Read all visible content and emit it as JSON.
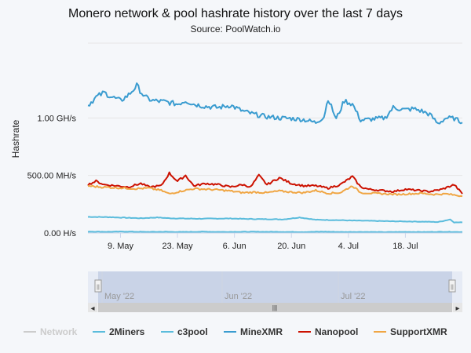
{
  "chart_data": {
    "type": "line",
    "title": "Monero network & pool hashrate history over the last 7 days",
    "subtitle": "Source: PoolWatch.io",
    "ylabel": "Hashrate",
    "xlabel": "",
    "ylim_mhs": [
      0,
      1650
    ],
    "y_ticks": [
      {
        "value": 0,
        "label": "0.00 H/s"
      },
      {
        "value": 500,
        "label": "500.00 MH/s"
      },
      {
        "value": 1000,
        "label": "1.00 GH/s"
      }
    ],
    "x_range": [
      "2022-05-01",
      "2022-08-01"
    ],
    "x_ticks": [
      {
        "date": "2022-05-09",
        "label": "9. May"
      },
      {
        "date": "2022-05-23",
        "label": "23. May"
      },
      {
        "date": "2022-06-06",
        "label": "6. Jun"
      },
      {
        "date": "2022-06-20",
        "label": "20. Jun"
      },
      {
        "date": "2022-07-04",
        "label": "4. Jul"
      },
      {
        "date": "2022-07-18",
        "label": "18. Jul"
      }
    ],
    "grid": true,
    "legend_position": "bottom",
    "series": [
      {
        "name": "Network",
        "color": "#cccccc",
        "visible": false,
        "points": []
      },
      {
        "name": "2Miners",
        "color": "#5bbcdc",
        "visible": true,
        "points": [
          [
            "2022-05-01",
            140
          ],
          [
            "2022-05-06",
            138
          ],
          [
            "2022-05-10",
            133
          ],
          [
            "2022-05-14",
            128
          ],
          [
            "2022-05-18",
            135
          ],
          [
            "2022-05-21",
            128
          ],
          [
            "2022-05-24",
            126
          ],
          [
            "2022-05-28",
            124
          ],
          [
            "2022-06-01",
            125
          ],
          [
            "2022-06-05",
            126
          ],
          [
            "2022-06-09",
            122
          ],
          [
            "2022-06-14",
            120
          ],
          [
            "2022-06-18",
            118
          ],
          [
            "2022-06-22",
            135
          ],
          [
            "2022-06-26",
            115
          ],
          [
            "2022-07-01",
            112
          ],
          [
            "2022-07-05",
            108
          ],
          [
            "2022-07-10",
            105
          ],
          [
            "2022-07-14",
            102
          ],
          [
            "2022-07-19",
            100
          ],
          [
            "2022-07-23",
            98
          ],
          [
            "2022-07-26",
            95
          ],
          [
            "2022-07-29",
            118
          ],
          [
            "2022-07-30",
            92
          ],
          [
            "2022-08-01",
            92
          ]
        ]
      },
      {
        "name": "c3pool",
        "color": "#5bbcdc",
        "visible": true,
        "points": [
          [
            "2022-05-01",
            12
          ],
          [
            "2022-05-06",
            10
          ],
          [
            "2022-05-10",
            12
          ],
          [
            "2022-05-15",
            9
          ],
          [
            "2022-05-20",
            10
          ],
          [
            "2022-05-24",
            8
          ],
          [
            "2022-05-29",
            11
          ],
          [
            "2022-06-03",
            9
          ],
          [
            "2022-06-08",
            10
          ],
          [
            "2022-06-13",
            10
          ],
          [
            "2022-06-18",
            9
          ],
          [
            "2022-06-23",
            8
          ],
          [
            "2022-06-28",
            11
          ],
          [
            "2022-07-03",
            8
          ],
          [
            "2022-07-08",
            9
          ],
          [
            "2022-07-13",
            7
          ],
          [
            "2022-07-18",
            9
          ],
          [
            "2022-07-23",
            8
          ],
          [
            "2022-07-28",
            10
          ],
          [
            "2022-08-01",
            8
          ]
        ]
      },
      {
        "name": "MineXMR",
        "color": "#3a9cd0",
        "visible": true,
        "points": [
          [
            "2022-05-01",
            1110
          ],
          [
            "2022-05-03",
            1180
          ],
          [
            "2022-05-05",
            1220
          ],
          [
            "2022-05-07",
            1180
          ],
          [
            "2022-05-09",
            1150
          ],
          [
            "2022-05-11",
            1200
          ],
          [
            "2022-05-13",
            1280
          ],
          [
            "2022-05-15",
            1180
          ],
          [
            "2022-05-17",
            1150
          ],
          [
            "2022-05-20",
            1140
          ],
          [
            "2022-05-23",
            1120
          ],
          [
            "2022-05-25",
            1150
          ],
          [
            "2022-05-27",
            1120
          ],
          [
            "2022-05-30",
            1100
          ],
          [
            "2022-06-02",
            1090
          ],
          [
            "2022-06-05",
            1110
          ],
          [
            "2022-06-08",
            1060
          ],
          [
            "2022-06-11",
            1030
          ],
          [
            "2022-06-14",
            1010
          ],
          [
            "2022-06-17",
            1000
          ],
          [
            "2022-06-20",
            995
          ],
          [
            "2022-06-23",
            985
          ],
          [
            "2022-06-26",
            960
          ],
          [
            "2022-06-28",
            1010
          ],
          [
            "2022-06-29",
            1170
          ],
          [
            "2022-07-01",
            990
          ],
          [
            "2022-07-03",
            1150
          ],
          [
            "2022-07-05",
            1120
          ],
          [
            "2022-07-07",
            980
          ],
          [
            "2022-07-10",
            990
          ],
          [
            "2022-07-13",
            1000
          ],
          [
            "2022-07-15",
            1090
          ],
          [
            "2022-07-18",
            1070
          ],
          [
            "2022-07-20",
            1080
          ],
          [
            "2022-07-22",
            1060
          ],
          [
            "2022-07-24",
            1030
          ],
          [
            "2022-07-26",
            950
          ],
          [
            "2022-07-28",
            1000
          ],
          [
            "2022-07-30",
            995
          ],
          [
            "2022-08-01",
            960
          ]
        ]
      },
      {
        "name": "Nanopool",
        "color": "#cc1100",
        "visible": true,
        "points": [
          [
            "2022-05-01",
            420
          ],
          [
            "2022-05-03",
            450
          ],
          [
            "2022-05-05",
            420
          ],
          [
            "2022-05-08",
            410
          ],
          [
            "2022-05-11",
            400
          ],
          [
            "2022-05-14",
            430
          ],
          [
            "2022-05-16",
            400
          ],
          [
            "2022-05-19",
            410
          ],
          [
            "2022-05-21",
            520
          ],
          [
            "2022-05-23",
            450
          ],
          [
            "2022-05-25",
            500
          ],
          [
            "2022-05-27",
            410
          ],
          [
            "2022-05-30",
            430
          ],
          [
            "2022-06-02",
            420
          ],
          [
            "2022-06-05",
            400
          ],
          [
            "2022-06-08",
            420
          ],
          [
            "2022-06-10",
            400
          ],
          [
            "2022-06-12",
            500
          ],
          [
            "2022-06-14",
            420
          ],
          [
            "2022-06-17",
            480
          ],
          [
            "2022-06-20",
            430
          ],
          [
            "2022-06-23",
            410
          ],
          [
            "2022-06-26",
            410
          ],
          [
            "2022-06-29",
            390
          ],
          [
            "2022-07-02",
            420
          ],
          [
            "2022-07-05",
            490
          ],
          [
            "2022-07-07",
            400
          ],
          [
            "2022-07-09",
            380
          ],
          [
            "2022-07-12",
            370
          ],
          [
            "2022-07-15",
            360
          ],
          [
            "2022-07-18",
            380
          ],
          [
            "2022-07-21",
            370
          ],
          [
            "2022-07-24",
            360
          ],
          [
            "2022-07-27",
            380
          ],
          [
            "2022-07-30",
            420
          ],
          [
            "2022-08-01",
            340
          ]
        ]
      },
      {
        "name": "SupportXMR",
        "color": "#f0a644",
        "visible": true,
        "points": [
          [
            "2022-05-01",
            410
          ],
          [
            "2022-05-04",
            400
          ],
          [
            "2022-05-07",
            395
          ],
          [
            "2022-05-10",
            390
          ],
          [
            "2022-05-13",
            385
          ],
          [
            "2022-05-16",
            390
          ],
          [
            "2022-05-19",
            370
          ],
          [
            "2022-05-21",
            340
          ],
          [
            "2022-05-24",
            365
          ],
          [
            "2022-05-27",
            385
          ],
          [
            "2022-05-30",
            380
          ],
          [
            "2022-06-02",
            375
          ],
          [
            "2022-06-05",
            365
          ],
          [
            "2022-06-08",
            350
          ],
          [
            "2022-06-11",
            355
          ],
          [
            "2022-06-14",
            350
          ],
          [
            "2022-06-17",
            365
          ],
          [
            "2022-06-20",
            355
          ],
          [
            "2022-06-23",
            350
          ],
          [
            "2022-06-26",
            370
          ],
          [
            "2022-06-29",
            345
          ],
          [
            "2022-07-02",
            350
          ],
          [
            "2022-07-05",
            410
          ],
          [
            "2022-07-07",
            350
          ],
          [
            "2022-07-10",
            345
          ],
          [
            "2022-07-13",
            340
          ],
          [
            "2022-07-16",
            335
          ],
          [
            "2022-07-19",
            340
          ],
          [
            "2022-07-22",
            345
          ],
          [
            "2022-07-25",
            335
          ],
          [
            "2022-07-28",
            340
          ],
          [
            "2022-08-01",
            320
          ]
        ]
      }
    ]
  },
  "navigator": {
    "labels": [
      "May '22",
      "Jun '22",
      "Jul '22"
    ],
    "handle_glyph": "||",
    "left_arrow": "◂",
    "right_arrow": "▸",
    "thumb_glyph": "|||"
  }
}
